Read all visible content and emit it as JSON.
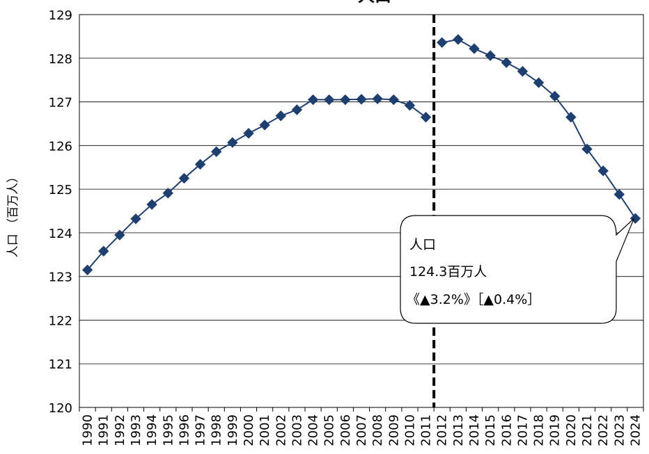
{
  "chart_data": {
    "type": "line",
    "title": "人口",
    "ylabel": "人口 （百万人）",
    "xlabel": "",
    "ylim": [
      120,
      129
    ],
    "yticks": [
      120,
      121,
      122,
      123,
      124,
      125,
      126,
      127,
      128,
      129
    ],
    "grid": true,
    "colors": {
      "series": "#1f3f6e",
      "grid": "#000000",
      "divider": "#000000"
    },
    "divider_after": "2011",
    "series": [
      {
        "segment": 1,
        "x": [
          "1990",
          "1991",
          "1992",
          "1993",
          "1994",
          "1995",
          "1996",
          "1997",
          "1998",
          "1999",
          "2000",
          "2001",
          "2002",
          "2003",
          "2004",
          "2005",
          "2006",
          "2007",
          "2008",
          "2009",
          "2010",
          "2011"
        ],
        "values": [
          123.15,
          123.58,
          123.95,
          124.32,
          124.65,
          124.91,
          125.25,
          125.57,
          125.86,
          126.07,
          126.28,
          126.47,
          126.68,
          126.82,
          127.05,
          127.05,
          127.05,
          127.06,
          127.07,
          127.05,
          126.92,
          126.65
        ]
      },
      {
        "segment": 2,
        "x": [
          "2012",
          "2013",
          "2014",
          "2015",
          "2016",
          "2017",
          "2018",
          "2019",
          "2020",
          "2021",
          "2022",
          "2023",
          "2024"
        ],
        "values": [
          128.36,
          128.43,
          128.22,
          128.06,
          127.9,
          127.7,
          127.44,
          127.13,
          126.65,
          125.92,
          125.42,
          124.88,
          124.33
        ]
      }
    ],
    "callout": {
      "line1": "人口",
      "line2": "124.3百万人",
      "line3": "《▲3.2%》［▲0.4%］",
      "point_x": "2024"
    }
  }
}
